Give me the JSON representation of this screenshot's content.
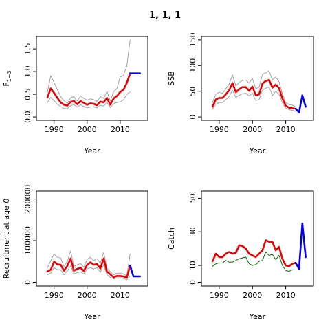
{
  "figure_title": "1, 1, 1",
  "chart_data": [
    {
      "type": "line",
      "ylabel": "F",
      "ylabel_sub": "1−3",
      "xlabel": "Year",
      "xlim": [
        1986,
        2017
      ],
      "ylim": [
        0,
        1.7
      ],
      "x_ticks": [
        1990,
        2000,
        2010
      ],
      "y_ticks": [
        0,
        0.5,
        1,
        1.5
      ],
      "y_tick_labels": [
        "0.0",
        "0.5",
        "1.0",
        "1.5"
      ],
      "series": [
        {
          "role": "upper",
          "color": "#a0a0a0",
          "width": 1,
          "x": [
            1988,
            1989,
            1990,
            1991,
            1992,
            1993,
            1994,
            1995,
            1996,
            1997,
            1998,
            1999,
            2000,
            2001,
            2002,
            2003,
            2004,
            2005,
            2006,
            2007,
            2008,
            2009,
            2010,
            2011,
            2012,
            2013
          ],
          "y": [
            0.55,
            0.91,
            0.76,
            0.6,
            0.45,
            0.36,
            0.3,
            0.42,
            0.45,
            0.35,
            0.46,
            0.41,
            0.37,
            0.4,
            0.38,
            0.34,
            0.45,
            0.41,
            0.56,
            0.35,
            0.55,
            0.63,
            0.88,
            0.92,
            1.12,
            1.7
          ]
        },
        {
          "role": "lower",
          "color": "#a0a0a0",
          "width": 1,
          "x": [
            1988,
            1989,
            1990,
            1991,
            1992,
            1993,
            1994,
            1995,
            1996,
            1997,
            1998,
            1999,
            2000,
            2001,
            2002,
            2003,
            2004,
            2005,
            2006,
            2007,
            2008,
            2009,
            2010,
            2011,
            2012,
            2013
          ],
          "y": [
            0.32,
            0.43,
            0.36,
            0.28,
            0.23,
            0.19,
            0.18,
            0.25,
            0.27,
            0.22,
            0.27,
            0.23,
            0.2,
            0.22,
            0.22,
            0.2,
            0.26,
            0.24,
            0.32,
            0.21,
            0.29,
            0.32,
            0.33,
            0.38,
            0.5,
            0.55
          ]
        },
        {
          "role": "estimate",
          "color": "#ee0000",
          "width": 2.6,
          "x": [
            1988,
            1989,
            1990,
            1991,
            1992,
            1993,
            1994,
            1995,
            1996,
            1997,
            1998,
            1999,
            2000,
            2001,
            2002,
            2003,
            2004,
            2005,
            2006,
            2007,
            2008,
            2009,
            2010,
            2011,
            2012,
            2013
          ],
          "y": [
            0.43,
            0.63,
            0.53,
            0.42,
            0.32,
            0.27,
            0.25,
            0.33,
            0.35,
            0.28,
            0.35,
            0.31,
            0.27,
            0.3,
            0.29,
            0.26,
            0.34,
            0.32,
            0.42,
            0.27,
            0.41,
            0.46,
            0.55,
            0.6,
            0.75,
            0.96
          ]
        },
        {
          "role": "projection",
          "color": "#0000ee",
          "width": 2.6,
          "x": [
            2013,
            2014,
            2015,
            2016
          ],
          "y": [
            0.96,
            0.96,
            0.96,
            0.96
          ]
        }
      ]
    },
    {
      "type": "line",
      "ylabel": "SSB",
      "xlabel": "Year",
      "xlim": [
        1986,
        2017
      ],
      "ylim": [
        0,
        150
      ],
      "x_ticks": [
        1990,
        2000,
        2010
      ],
      "y_ticks": [
        0,
        50,
        100,
        150
      ],
      "y_tick_labels": [
        "0",
        "50",
        "100",
        "150"
      ],
      "series": [
        {
          "role": "upper",
          "color": "#a0a0a0",
          "width": 1,
          "x": [
            1988,
            1989,
            1990,
            1991,
            1992,
            1993,
            1994,
            1995,
            1996,
            1997,
            1998,
            1999,
            2000,
            2001,
            2002,
            2003,
            2004,
            2005,
            2006,
            2007,
            2008,
            2009,
            2010,
            2011,
            2012,
            2013
          ],
          "y": [
            28,
            44,
            48,
            46,
            55,
            64,
            82,
            60,
            67,
            71,
            72,
            66,
            75,
            55,
            58,
            83,
            86,
            90,
            72,
            78,
            68,
            45,
            28,
            24,
            23,
            20
          ]
        },
        {
          "role": "lower",
          "color": "#a0a0a0",
          "width": 1,
          "x": [
            1988,
            1989,
            1990,
            1991,
            1992,
            1993,
            1994,
            1995,
            1996,
            1997,
            1998,
            1999,
            2000,
            2001,
            2002,
            2003,
            2004,
            2005,
            2006,
            2007,
            2008,
            2009,
            2010,
            2011,
            2012,
            2013
          ],
          "y": [
            15,
            25,
            28,
            28,
            34,
            40,
            52,
            38,
            42,
            45,
            46,
            41,
            46,
            32,
            34,
            52,
            56,
            58,
            42,
            50,
            44,
            28,
            17,
            14,
            13,
            11
          ]
        },
        {
          "role": "estimate",
          "color": "#ee0000",
          "width": 2.6,
          "x": [
            1988,
            1989,
            1990,
            1991,
            1992,
            1993,
            1994,
            1995,
            1996,
            1997,
            1998,
            1999,
            2000,
            2001,
            2002,
            2003,
            2004,
            2005,
            2006,
            2007,
            2008,
            2009,
            2010,
            2011,
            2012,
            2013
          ],
          "y": [
            20,
            34,
            37,
            37,
            44,
            52,
            66,
            48,
            54,
            58,
            58,
            51,
            59,
            42,
            44,
            65,
            70,
            72,
            57,
            63,
            56,
            36,
            22,
            18,
            17,
            16
          ]
        },
        {
          "role": "projection",
          "color": "#0000ee",
          "width": 2.6,
          "x": [
            2013,
            2014,
            2015,
            2016
          ],
          "y": [
            16,
            9,
            42,
            20
          ]
        }
      ]
    },
    {
      "type": "line",
      "ylabel": "Recruitment at age 0",
      "xlabel": "Year",
      "xlim": [
        1986,
        2017
      ],
      "ylim": [
        0,
        210000
      ],
      "x_ticks": [
        1990,
        2000,
        2010
      ],
      "y_ticks": [
        0,
        100000,
        200000
      ],
      "y_tick_labels": [
        "0",
        "100000",
        "200000"
      ],
      "series": [
        {
          "role": "upper",
          "color": "#a0a0a0",
          "width": 1,
          "x": [
            1988,
            1989,
            1990,
            1991,
            1992,
            1993,
            1994,
            1995,
            1996,
            1997,
            1998,
            1999,
            2000,
            2001,
            2002,
            2003,
            2004,
            2005,
            2006,
            2007,
            2008,
            2009,
            2010,
            2011,
            2012,
            2013
          ],
          "y": [
            35000,
            52000,
            68000,
            60000,
            58000,
            38000,
            50000,
            75000,
            38000,
            42000,
            45000,
            36000,
            55000,
            60000,
            52000,
            57000,
            45000,
            72000,
            34000,
            25000,
            18000,
            22000,
            22000,
            20000,
            15000,
            68000
          ]
        },
        {
          "role": "lower",
          "color": "#a0a0a0",
          "width": 1,
          "x": [
            1988,
            1989,
            1990,
            1991,
            1992,
            1993,
            1994,
            1995,
            1996,
            1997,
            1998,
            1999,
            2000,
            2001,
            2002,
            2003,
            2004,
            2005,
            2006,
            2007,
            2008,
            2009,
            2010,
            2011,
            2012,
            2013
          ],
          "y": [
            18000,
            22000,
            35000,
            30000,
            30000,
            18000,
            27000,
            40000,
            20000,
            23000,
            25000,
            20000,
            32000,
            35000,
            32000,
            35000,
            24000,
            42000,
            18000,
            12000,
            8000,
            10000,
            10000,
            9000,
            6000,
            15000
          ]
        },
        {
          "role": "estimate",
          "color": "#ee0000",
          "width": 2.6,
          "x": [
            1988,
            1989,
            1990,
            1991,
            1992,
            1993,
            1994,
            1995,
            1996,
            1997,
            1998,
            1999,
            2000,
            2001,
            2002,
            2003,
            2004,
            2005,
            2006,
            2007,
            2008,
            2009,
            2010,
            2011,
            2012,
            2013
          ],
          "y": [
            26000,
            30000,
            50000,
            43000,
            42000,
            28000,
            39000,
            57000,
            28000,
            32000,
            35000,
            27000,
            42000,
            48000,
            42000,
            44000,
            33000,
            57000,
            26000,
            19000,
            12000,
            15000,
            15000,
            14000,
            11000,
            40000
          ]
        },
        {
          "role": "projection",
          "color": "#0000ee",
          "width": 2.6,
          "x": [
            2013,
            2014,
            2015,
            2016
          ],
          "y": [
            40000,
            14000,
            14000,
            14000
          ]
        }
      ]
    },
    {
      "type": "line",
      "ylabel": "Catch",
      "xlabel": "Year",
      "xlim": [
        1986,
        2017
      ],
      "ylim": [
        0,
        52
      ],
      "x_ticks": [
        1990,
        2000,
        2010
      ],
      "y_ticks": [
        0,
        10,
        30,
        50
      ],
      "y_tick_labels": [
        "0",
        "10",
        "30",
        "50"
      ],
      "series": [
        {
          "role": "observed",
          "color": "#006400",
          "width": 1,
          "x": [
            1988,
            1989,
            1990,
            1991,
            1992,
            1993,
            1994,
            1995,
            1996,
            1997,
            1998,
            1999,
            2000,
            2001,
            2002,
            2003,
            2004,
            2005,
            2006,
            2007,
            2008,
            2009,
            2010,
            2011,
            2012
          ],
          "y": [
            9.5,
            11,
            11.5,
            11.5,
            13,
            12,
            12,
            13,
            14,
            14.5,
            15,
            11,
            10,
            10.5,
            12.5,
            13,
            18,
            16,
            16.5,
            13.5,
            16,
            10,
            7,
            6.5,
            7.5
          ]
        },
        {
          "role": "estimate",
          "color": "#ee0000",
          "width": 2.6,
          "x": [
            1988,
            1989,
            1990,
            1991,
            1992,
            1993,
            1994,
            1995,
            1996,
            1997,
            1998,
            1999,
            2000,
            2001,
            2002,
            2003,
            2004,
            2005,
            2006,
            2007,
            2008,
            2009,
            2010,
            2011,
            2012,
            2013
          ],
          "y": [
            12.5,
            17,
            15,
            15,
            17,
            18,
            17,
            17.5,
            22,
            21.5,
            20,
            17,
            16,
            15,
            17,
            19,
            25,
            24,
            24,
            19,
            21,
            14,
            10,
            9.5,
            11,
            11.5
          ]
        },
        {
          "role": "projection",
          "color": "#0000ee",
          "width": 2.6,
          "x": [
            2013,
            2014,
            2015,
            2016
          ],
          "y": [
            11.5,
            8,
            35,
            15
          ]
        }
      ]
    }
  ]
}
